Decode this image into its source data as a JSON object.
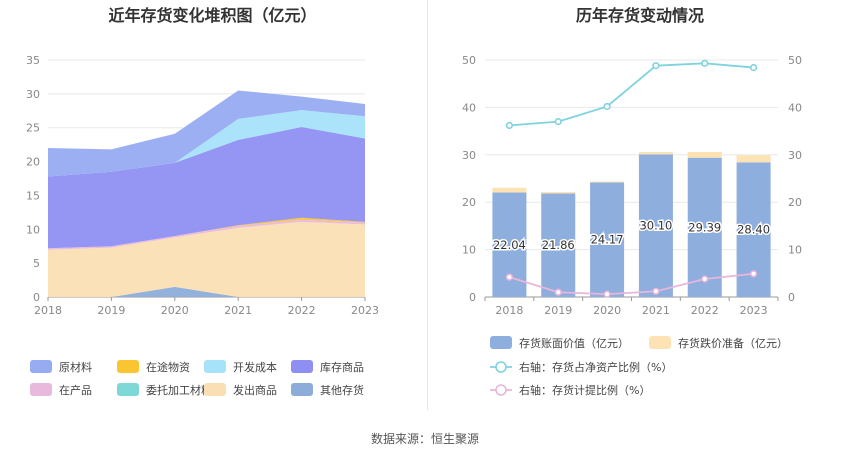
{
  "source": "数据来源：恒生聚源",
  "colors": {
    "原材料": "#97abf2",
    "在途物资": "#fbc431",
    "开发成本": "#a7e2fb",
    "库存商品": "#8f8ff3",
    "在产品": "#e9b9dd",
    "委托加工材料": "#7dd8d7",
    "发出商品": "#fbdfb4",
    "其他存货": "#8cadd9",
    "bar_main": "#8eaedd",
    "bar_reserve": "#fde3b3",
    "line_ratio": "#7fd3de",
    "line_provision": "#e9b6db",
    "grid": "#e8e8e8",
    "axis": "#999999"
  },
  "chart_data": [
    {
      "type": "area",
      "title": "近年存货变化堆积图（亿元）",
      "x": [
        "2018",
        "2019",
        "2020",
        "2021",
        "2022",
        "2023"
      ],
      "ylim": [
        0,
        35
      ],
      "yticks": [
        "0",
        "5",
        "10",
        "15",
        "20",
        "25",
        "30",
        "35"
      ],
      "stack_order": [
        "其他存货",
        "发出商品",
        "在产品",
        "委托加工材料",
        "在途物资",
        "库存商品",
        "开发成本",
        "原材料"
      ],
      "series": [
        {
          "name": "原材料",
          "values": [
            4.2,
            3.3,
            4.3,
            4.2,
            2.0,
            1.8
          ]
        },
        {
          "name": "在途物资",
          "values": [
            0,
            0,
            0,
            0.1,
            0.3,
            0.1
          ]
        },
        {
          "name": "开发成本",
          "values": [
            0,
            0,
            0,
            3.1,
            2.5,
            3.3
          ]
        },
        {
          "name": "库存商品",
          "values": [
            10.6,
            11.0,
            10.8,
            12.6,
            13.4,
            12.3
          ]
        },
        {
          "name": "在产品",
          "values": [
            0.2,
            0.2,
            0.2,
            0.3,
            0.3,
            0.3
          ]
        },
        {
          "name": "委托加工材料",
          "values": [
            0,
            0,
            0,
            0,
            0,
            0
          ]
        },
        {
          "name": "发出商品",
          "values": [
            7.0,
            7.3,
            7.3,
            10.2,
            11.1,
            10.7
          ]
        },
        {
          "name": "其他存货",
          "values": [
            0,
            0,
            1.5,
            0,
            0,
            0
          ]
        }
      ],
      "legend": [
        "原材料",
        "在途物资",
        "开发成本",
        "库存商品",
        "在产品",
        "委托加工材料",
        "发出商品",
        "其他存货"
      ],
      "legend_position": "bottom"
    },
    {
      "type": "bar",
      "title": "历年存货变动情况",
      "categories": [
        "2018",
        "2019",
        "2020",
        "2021",
        "2022",
        "2023"
      ],
      "ylim": [
        0,
        50
      ],
      "yticks": [
        "0",
        "10",
        "20",
        "30",
        "40",
        "50"
      ],
      "y2lim": [
        0,
        50
      ],
      "y2ticks": [
        "0",
        "10",
        "20",
        "30",
        "40",
        "50"
      ],
      "series": [
        {
          "name": "存货账面价值（亿元）",
          "kind": "bar",
          "values": [
            22.04,
            21.86,
            24.17,
            30.1,
            29.39,
            28.4
          ],
          "labels": [
            "22.04",
            "21.86",
            "24.17",
            "30.10",
            "29.39",
            "28.40"
          ]
        },
        {
          "name": "存货跌价准备（亿元）",
          "kind": "bar-stacked",
          "values": [
            1.0,
            0.3,
            0.2,
            0.5,
            1.2,
            1.5
          ]
        },
        {
          "name": "右轴：存货占净资产比例（%）",
          "kind": "line",
          "axis": "right",
          "values": [
            36.2,
            37.0,
            40.2,
            48.8,
            49.3,
            48.4
          ]
        },
        {
          "name": "右轴：存货计提比例（%）",
          "kind": "line",
          "axis": "right",
          "values": [
            4.2,
            1.0,
            0.6,
            1.2,
            3.8,
            4.9
          ]
        }
      ],
      "legend_position": "bottom"
    }
  ]
}
